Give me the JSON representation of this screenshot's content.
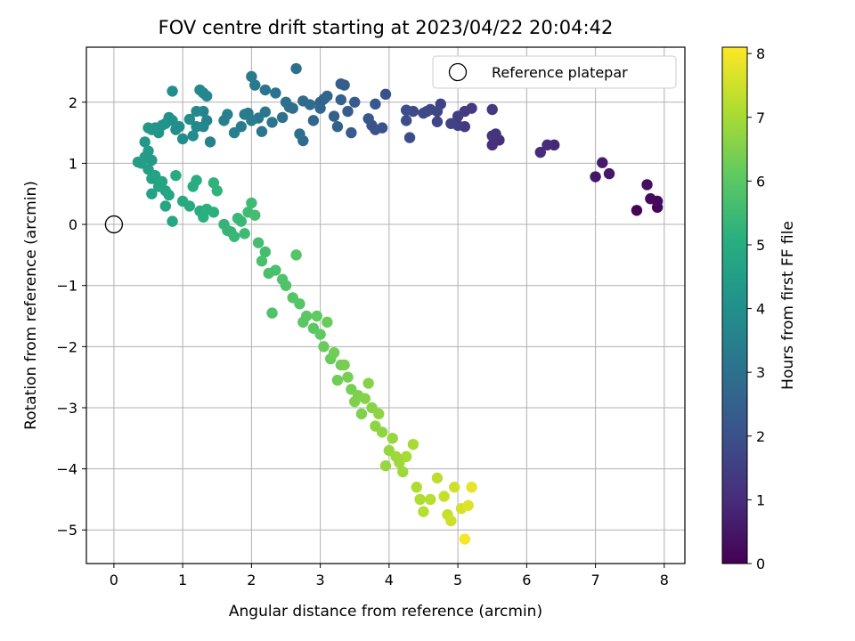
{
  "chart_data": {
    "type": "scatter",
    "title": "FOV centre drift starting at 2023/04/22 20:04:42",
    "xlabel": "Angular distance from reference (arcmin)",
    "ylabel": "Rotation from reference (arcmin)",
    "xlim": [
      -0.4,
      8.3
    ],
    "ylim": [
      -5.55,
      2.9
    ],
    "xticks": [
      "0",
      "1",
      "2",
      "3",
      "4",
      "5",
      "6",
      "7",
      "8"
    ],
    "yticks": [
      "2",
      "1",
      "0",
      "−1",
      "−2",
      "−3",
      "−4",
      "−5"
    ],
    "grid": true,
    "legend": {
      "placement": "top-right",
      "label": "Reference platepar"
    },
    "reference_point": {
      "x": 0,
      "y": 0
    },
    "colorbar": {
      "label": "Hours from first FF file",
      "range": [
        0,
        8.1
      ],
      "ticks": [
        "0",
        "1",
        "2",
        "3",
        "4",
        "5",
        "6",
        "7",
        "8"
      ],
      "colormap": "viridis"
    },
    "series": [
      {
        "points": [
          [
            7.6,
            0.23,
            0.1
          ],
          [
            7.9,
            0.28,
            0.1
          ],
          [
            7.9,
            0.38,
            0.2
          ],
          [
            7.8,
            0.42,
            0.2
          ],
          [
            7.75,
            0.65,
            0.3
          ],
          [
            7.0,
            0.78,
            0.5
          ],
          [
            7.2,
            0.83,
            0.5
          ],
          [
            7.1,
            1.01,
            0.6
          ],
          [
            6.4,
            1.3,
            0.9
          ],
          [
            6.3,
            1.3,
            1.0
          ],
          [
            6.2,
            1.18,
            1.0
          ],
          [
            5.5,
            1.3,
            1.1
          ],
          [
            5.6,
            1.38,
            1.1
          ],
          [
            5.55,
            1.48,
            1.2
          ],
          [
            5.5,
            1.45,
            1.2
          ],
          [
            5.5,
            1.88,
            1.3
          ],
          [
            5.2,
            1.9,
            1.4
          ],
          [
            5.1,
            1.85,
            1.4
          ],
          [
            5.1,
            1.6,
            1.4
          ],
          [
            5.0,
            1.62,
            1.5
          ],
          [
            5.0,
            1.77,
            1.5
          ],
          [
            4.9,
            1.65,
            1.6
          ],
          [
            4.75,
            1.97,
            1.6
          ],
          [
            4.7,
            1.85,
            1.7
          ],
          [
            4.7,
            1.68,
            1.7
          ],
          [
            4.6,
            1.88,
            1.7
          ],
          [
            4.55,
            1.85,
            1.8
          ],
          [
            4.5,
            1.82,
            1.8
          ],
          [
            4.35,
            1.85,
            1.8
          ],
          [
            4.3,
            1.42,
            1.9
          ],
          [
            4.25,
            1.7,
            1.9
          ],
          [
            4.25,
            1.87,
            1.9
          ],
          [
            3.95,
            2.13,
            2.0
          ],
          [
            3.9,
            1.58,
            2.0
          ],
          [
            3.8,
            1.55,
            2.1
          ],
          [
            3.75,
            1.62,
            2.1
          ],
          [
            3.8,
            1.97,
            2.2
          ],
          [
            3.7,
            1.73,
            2.2
          ],
          [
            3.5,
            2.0,
            2.3
          ],
          [
            3.45,
            1.5,
            2.3
          ],
          [
            3.4,
            1.85,
            2.3
          ],
          [
            3.35,
            2.28,
            2.4
          ],
          [
            3.3,
            2.3,
            2.4
          ],
          [
            3.3,
            2.04,
            2.5
          ],
          [
            3.25,
            1.6,
            2.5
          ],
          [
            3.2,
            1.77,
            2.5
          ],
          [
            3.1,
            2.1,
            2.6
          ],
          [
            3.05,
            2.05,
            2.6
          ],
          [
            3.0,
            2.0,
            2.6
          ],
          [
            3.0,
            1.9,
            2.7
          ],
          [
            2.9,
            1.7,
            2.7
          ],
          [
            2.85,
            1.96,
            2.8
          ],
          [
            2.75,
            1.37,
            2.8
          ],
          [
            2.75,
            2.02,
            2.8
          ],
          [
            2.7,
            1.48,
            2.9
          ],
          [
            2.65,
            2.55,
            2.9
          ],
          [
            2.6,
            1.9,
            2.9
          ],
          [
            2.55,
            1.92,
            3.0
          ],
          [
            2.5,
            2.0,
            3.0
          ],
          [
            2.45,
            1.75,
            3.0
          ],
          [
            2.35,
            2.15,
            3.1
          ],
          [
            2.3,
            1.67,
            3.1
          ],
          [
            2.2,
            2.2,
            3.1
          ],
          [
            2.2,
            1.84,
            3.2
          ],
          [
            2.15,
            1.52,
            3.2
          ],
          [
            2.1,
            1.74,
            3.2
          ],
          [
            2.05,
            2.28,
            3.3
          ],
          [
            2.0,
            2.42,
            3.3
          ],
          [
            1.95,
            1.82,
            3.3
          ],
          [
            2.0,
            1.7,
            3.4
          ],
          [
            1.9,
            1.8,
            3.4
          ],
          [
            1.85,
            1.6,
            3.4
          ],
          [
            1.75,
            1.5,
            3.5
          ],
          [
            1.65,
            1.8,
            3.5
          ],
          [
            1.6,
            1.7,
            3.5
          ],
          [
            1.4,
            1.35,
            3.6
          ],
          [
            1.35,
            1.7,
            3.6
          ],
          [
            1.3,
            1.85,
            3.6
          ],
          [
            1.3,
            2.15,
            3.7
          ],
          [
            1.35,
            2.1,
            3.7
          ],
          [
            1.3,
            1.6,
            3.7
          ],
          [
            1.25,
            2.2,
            3.8
          ],
          [
            1.2,
            1.85,
            3.8
          ],
          [
            1.2,
            1.6,
            3.8
          ],
          [
            1.15,
            1.45,
            3.9
          ],
          [
            1.1,
            1.72,
            3.9
          ],
          [
            1.0,
            1.4,
            3.9
          ],
          [
            0.95,
            1.6,
            4.0
          ],
          [
            0.9,
            1.55,
            4.0
          ],
          [
            0.85,
            2.18,
            4.0
          ],
          [
            0.85,
            1.7,
            4.1
          ],
          [
            0.8,
            1.75,
            4.1
          ],
          [
            0.75,
            1.65,
            4.1
          ],
          [
            0.7,
            1.62,
            4.2
          ],
          [
            0.65,
            1.5,
            4.2
          ],
          [
            0.6,
            1.58,
            4.2
          ],
          [
            0.55,
            1.55,
            4.3
          ],
          [
            0.5,
            1.58,
            4.3
          ],
          [
            0.45,
            1.35,
            4.3
          ],
          [
            0.5,
            1.2,
            4.4
          ],
          [
            0.55,
            1.05,
            4.4
          ],
          [
            0.45,
            1.1,
            4.4
          ],
          [
            0.4,
            1.0,
            4.5
          ],
          [
            0.35,
            1.02,
            4.5
          ],
          [
            0.5,
            0.9,
            4.5
          ],
          [
            0.55,
            0.75,
            4.6
          ],
          [
            0.6,
            0.8,
            4.6
          ],
          [
            0.55,
            0.5,
            4.6
          ],
          [
            0.65,
            0.62,
            4.7
          ],
          [
            0.7,
            0.7,
            4.7
          ],
          [
            0.75,
            0.55,
            4.7
          ],
          [
            0.8,
            0.48,
            4.8
          ],
          [
            0.75,
            0.3,
            4.8
          ],
          [
            0.85,
            0.05,
            4.8
          ],
          [
            0.9,
            0.8,
            4.9
          ],
          [
            1.0,
            0.38,
            4.9
          ],
          [
            1.1,
            0.3,
            4.9
          ],
          [
            1.15,
            0.62,
            5.0
          ],
          [
            1.2,
            0.72,
            5.0
          ],
          [
            1.25,
            0.22,
            5.0
          ],
          [
            1.3,
            0.12,
            5.1
          ],
          [
            1.35,
            0.25,
            5.1
          ],
          [
            1.45,
            0.2,
            5.1
          ],
          [
            1.5,
            0.55,
            5.2
          ],
          [
            1.45,
            0.68,
            5.2
          ],
          [
            1.6,
            0.0,
            5.3
          ],
          [
            1.65,
            -0.1,
            5.3
          ],
          [
            1.7,
            -0.12,
            5.3
          ],
          [
            1.75,
            -0.2,
            5.4
          ],
          [
            1.8,
            0.1,
            5.4
          ],
          [
            1.85,
            0.05,
            5.4
          ],
          [
            1.9,
            -0.15,
            5.5
          ],
          [
            1.95,
            0.2,
            5.5
          ],
          [
            2.0,
            0.35,
            5.5
          ],
          [
            2.05,
            0.15,
            5.6
          ],
          [
            2.1,
            -0.3,
            5.6
          ],
          [
            2.2,
            -0.45,
            5.6
          ],
          [
            2.15,
            -0.6,
            5.7
          ],
          [
            2.25,
            -0.8,
            5.7
          ],
          [
            2.35,
            -0.75,
            5.7
          ],
          [
            2.3,
            -1.45,
            5.8
          ],
          [
            2.45,
            -0.9,
            5.8
          ],
          [
            2.5,
            -1.0,
            5.8
          ],
          [
            2.6,
            -1.2,
            5.9
          ],
          [
            2.65,
            -0.5,
            5.9
          ],
          [
            2.7,
            -1.3,
            5.9
          ],
          [
            2.75,
            -1.6,
            6.0
          ],
          [
            2.8,
            -1.5,
            6.0
          ],
          [
            2.9,
            -1.7,
            6.0
          ],
          [
            2.95,
            -1.5,
            6.1
          ],
          [
            3.0,
            -1.8,
            6.1
          ],
          [
            3.05,
            -2.0,
            6.2
          ],
          [
            3.1,
            -1.6,
            6.2
          ],
          [
            3.15,
            -2.2,
            6.2
          ],
          [
            3.2,
            -2.1,
            6.3
          ],
          [
            3.25,
            -2.55,
            6.3
          ],
          [
            3.3,
            -2.3,
            6.3
          ],
          [
            3.35,
            -2.3,
            6.4
          ],
          [
            3.4,
            -2.5,
            6.4
          ],
          [
            3.45,
            -2.7,
            6.4
          ],
          [
            3.5,
            -2.9,
            6.5
          ],
          [
            3.55,
            -2.8,
            6.5
          ],
          [
            3.6,
            -3.1,
            6.5
          ],
          [
            3.65,
            -2.85,
            6.6
          ],
          [
            3.7,
            -2.6,
            6.6
          ],
          [
            3.75,
            -3.0,
            6.6
          ],
          [
            3.8,
            -3.3,
            6.7
          ],
          [
            3.85,
            -3.1,
            6.7
          ],
          [
            3.9,
            -3.4,
            6.7
          ],
          [
            3.95,
            -3.95,
            6.8
          ],
          [
            4.0,
            -3.7,
            6.8
          ],
          [
            4.05,
            -3.5,
            6.8
          ],
          [
            4.1,
            -3.8,
            6.9
          ],
          [
            4.15,
            -3.9,
            6.9
          ],
          [
            4.2,
            -4.05,
            6.9
          ],
          [
            4.25,
            -3.8,
            7.0
          ],
          [
            4.35,
            -3.6,
            7.0
          ],
          [
            4.4,
            -4.3,
            7.1
          ],
          [
            4.45,
            -4.5,
            7.1
          ],
          [
            4.5,
            -4.7,
            7.2
          ],
          [
            4.6,
            -4.5,
            7.2
          ],
          [
            4.7,
            -4.15,
            7.3
          ],
          [
            4.8,
            -4.45,
            7.4
          ],
          [
            4.85,
            -4.75,
            7.4
          ],
          [
            4.9,
            -4.85,
            7.5
          ],
          [
            4.95,
            -4.3,
            7.5
          ],
          [
            5.05,
            -4.65,
            7.6
          ],
          [
            5.15,
            -4.6,
            7.7
          ],
          [
            5.2,
            -4.3,
            7.8
          ],
          [
            5.1,
            -5.15,
            8.0
          ]
        ]
      }
    ]
  }
}
